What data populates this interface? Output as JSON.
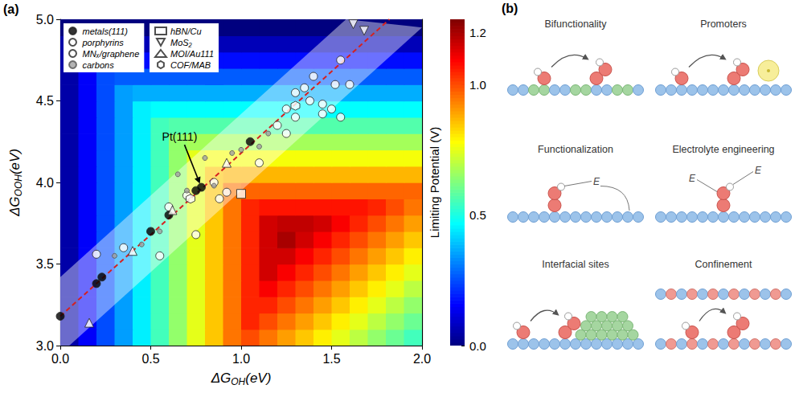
{
  "chart_data": {
    "type": "heatmap_scatter",
    "panel_label": "(a)",
    "xlabel": [
      "ΔG",
      "OH",
      "(eV)"
    ],
    "ylabel": [
      "ΔG",
      "OOH",
      "(eV)"
    ],
    "xlim": [
      0,
      2.0
    ],
    "ylim": [
      3.0,
      5.0
    ],
    "xticks": [
      {
        "value": 0,
        "label": "0.0"
      },
      0.5,
      {
        "value": 1,
        "label": "1.0"
      },
      1.5,
      {
        "value": 2,
        "label": "2.0"
      }
    ],
    "yticks": [
      {
        "value": 3,
        "label": "3.0"
      },
      3.5,
      {
        "value": 4,
        "label": "4.0"
      },
      4.5,
      {
        "value": 5,
        "label": "5.0"
      }
    ],
    "grid": false,
    "legend": "upper left",
    "heatmap": {
      "x": [
        0.05,
        0.15,
        0.25,
        0.35,
        0.45,
        0.55,
        0.65,
        0.75,
        0.85,
        0.95,
        1.05,
        1.15,
        1.25,
        1.35,
        1.45,
        1.55,
        1.65,
        1.75,
        1.85,
        1.95
      ],
      "y": [
        3.05,
        3.15,
        3.25,
        3.35,
        3.45,
        3.55,
        3.65,
        3.75,
        3.85,
        3.95,
        4.05,
        4.15,
        4.25,
        4.35,
        4.45,
        4.55,
        4.65,
        4.75,
        4.85,
        4.95
      ],
      "values": [
        [
          0.05,
          0.15,
          0.25,
          0.35,
          0.45,
          0.55,
          0.65,
          0.75,
          0.85,
          0.95,
          1.0,
          0.95,
          0.9,
          0.85,
          0.8,
          0.75,
          0.7,
          0.65,
          0.6,
          0.55
        ],
        [
          0.05,
          0.15,
          0.25,
          0.35,
          0.45,
          0.55,
          0.65,
          0.75,
          0.85,
          0.95,
          1.05,
          1.0,
          0.95,
          0.9,
          0.85,
          0.8,
          0.75,
          0.7,
          0.65,
          0.6
        ],
        [
          0.05,
          0.15,
          0.25,
          0.35,
          0.45,
          0.55,
          0.65,
          0.75,
          0.85,
          0.95,
          1.05,
          1.05,
          1.0,
          0.95,
          0.9,
          0.85,
          0.8,
          0.75,
          0.7,
          0.65
        ],
        [
          0.05,
          0.15,
          0.25,
          0.35,
          0.45,
          0.55,
          0.65,
          0.75,
          0.85,
          0.95,
          1.05,
          1.1,
          1.05,
          1.0,
          0.95,
          0.9,
          0.85,
          0.8,
          0.75,
          0.7
        ],
        [
          0.05,
          0.15,
          0.25,
          0.35,
          0.45,
          0.55,
          0.65,
          0.75,
          0.85,
          0.95,
          1.05,
          1.15,
          1.1,
          1.05,
          1.0,
          0.95,
          0.9,
          0.85,
          0.8,
          0.75
        ],
        [
          0.05,
          0.15,
          0.25,
          0.35,
          0.45,
          0.55,
          0.65,
          0.75,
          0.85,
          0.95,
          1.05,
          1.15,
          1.15,
          1.1,
          1.05,
          1.0,
          0.95,
          0.9,
          0.85,
          0.8
        ],
        [
          0.05,
          0.15,
          0.25,
          0.35,
          0.45,
          0.55,
          0.65,
          0.75,
          0.85,
          0.95,
          1.05,
          1.15,
          1.2,
          1.15,
          1.1,
          1.05,
          1.0,
          0.95,
          0.9,
          0.85
        ],
        [
          0.05,
          0.15,
          0.25,
          0.35,
          0.45,
          0.55,
          0.65,
          0.75,
          0.85,
          0.95,
          1.05,
          1.15,
          1.17,
          1.17,
          1.15,
          1.1,
          1.05,
          1.0,
          0.95,
          0.9
        ],
        [
          0.05,
          0.15,
          0.25,
          0.35,
          0.45,
          0.55,
          0.65,
          0.75,
          0.85,
          0.95,
          1.05,
          1.07,
          1.07,
          1.07,
          1.07,
          1.07,
          1.07,
          1.05,
          1.0,
          0.95
        ],
        [
          0.05,
          0.15,
          0.25,
          0.35,
          0.45,
          0.55,
          0.65,
          0.75,
          0.85,
          0.95,
          0.97,
          0.97,
          0.97,
          0.97,
          0.97,
          0.97,
          0.97,
          0.97,
          0.97,
          0.97
        ],
        [
          0.05,
          0.15,
          0.25,
          0.35,
          0.45,
          0.55,
          0.65,
          0.75,
          0.85,
          0.87,
          0.87,
          0.87,
          0.87,
          0.87,
          0.87,
          0.87,
          0.87,
          0.87,
          0.87,
          0.87
        ],
        [
          0.05,
          0.15,
          0.25,
          0.35,
          0.45,
          0.55,
          0.65,
          0.75,
          0.77,
          0.77,
          0.77,
          0.77,
          0.77,
          0.77,
          0.77,
          0.77,
          0.77,
          0.77,
          0.77,
          0.77
        ],
        [
          0.05,
          0.15,
          0.25,
          0.35,
          0.45,
          0.55,
          0.65,
          0.67,
          0.67,
          0.67,
          0.67,
          0.67,
          0.67,
          0.67,
          0.67,
          0.67,
          0.67,
          0.67,
          0.67,
          0.67
        ],
        [
          0.05,
          0.15,
          0.25,
          0.35,
          0.45,
          0.55,
          0.57,
          0.57,
          0.57,
          0.57,
          0.57,
          0.57,
          0.57,
          0.57,
          0.57,
          0.57,
          0.57,
          0.57,
          0.57,
          0.57
        ],
        [
          0.05,
          0.15,
          0.25,
          0.35,
          0.45,
          0.47,
          0.47,
          0.47,
          0.47,
          0.47,
          0.47,
          0.47,
          0.47,
          0.47,
          0.47,
          0.47,
          0.47,
          0.47,
          0.47,
          0.47
        ],
        [
          0.05,
          0.15,
          0.25,
          0.35,
          0.37,
          0.37,
          0.37,
          0.37,
          0.37,
          0.37,
          0.37,
          0.37,
          0.37,
          0.37,
          0.37,
          0.37,
          0.37,
          0.37,
          0.37,
          0.37
        ],
        [
          0.05,
          0.15,
          0.25,
          0.27,
          0.27,
          0.27,
          0.27,
          0.27,
          0.27,
          0.27,
          0.27,
          0.27,
          0.27,
          0.27,
          0.27,
          0.27,
          0.27,
          0.27,
          0.27,
          0.27
        ],
        [
          0.05,
          0.15,
          0.17,
          0.17,
          0.17,
          0.17,
          0.17,
          0.17,
          0.17,
          0.17,
          0.17,
          0.17,
          0.17,
          0.17,
          0.17,
          0.17,
          0.17,
          0.17,
          0.17,
          0.17
        ],
        [
          0.05,
          0.07,
          0.07,
          0.07,
          0.07,
          0.07,
          0.07,
          0.07,
          0.07,
          0.07,
          0.07,
          0.07,
          0.07,
          0.07,
          0.07,
          0.07,
          0.07,
          0.07,
          0.07,
          0.07
        ],
        [
          -0.03,
          -0.03,
          -0.03,
          -0.03,
          -0.03,
          -0.03,
          -0.03,
          -0.03,
          -0.03,
          -0.03,
          -0.03,
          -0.03,
          -0.03,
          -0.03,
          -0.03,
          -0.03,
          -0.03,
          -0.03,
          -0.03,
          -0.03
        ]
      ]
    },
    "colorbar": {
      "label": "Limiting Potential (V)",
      "range": [
        0,
        1.25
      ],
      "ticks": [
        {
          "value": 0,
          "label": "0.0"
        },
        0.5,
        {
          "value": 1,
          "label": "1.0"
        },
        1.2
      ]
    },
    "band": {
      "upper": {
        "x": [
          0,
          1.58
        ],
        "y": [
          3.42,
          5.0
        ]
      },
      "lower": {
        "x": [
          0,
          2.0
        ],
        "y": [
          2.95,
          4.95
        ]
      }
    },
    "scaling_line": {
      "x": [
        0,
        1.82
      ],
      "y": [
        3.18,
        5.0
      ],
      "color": "#d62020",
      "line_style": "dashed"
    },
    "series": [
      {
        "name": "metals(111)",
        "marker": "circle",
        "color": "#000000",
        "x": [
          0,
          0.2,
          0.23,
          0.5,
          0.6,
          0.75,
          0.78,
          1.05
        ],
        "y": [
          3.18,
          3.38,
          3.42,
          3.7,
          3.8,
          3.95,
          3.97,
          4.25
        ]
      },
      {
        "name": "porphyrins",
        "marker": "circle",
        "color": "#ffffff",
        "x": [
          0.2,
          0.35,
          0.55,
          0.75,
          0.92,
          0.85,
          1.1,
          1.3,
          1.38,
          1.45,
          1.52,
          1.55,
          1.3,
          1.5
        ],
        "y": [
          3.56,
          3.6,
          3.55,
          3.68,
          3.94,
          4.0,
          4.12,
          4.4,
          4.5,
          4.42,
          4.6,
          4.75,
          4.55,
          4.45
        ]
      },
      {
        "name": "MNₓ/graphene",
        "marker": "circle",
        "color": "#ffffff",
        "x": [
          0.6,
          0.7,
          0.88,
          1.2,
          1.25,
          1.35,
          1.4,
          1.45,
          1.55,
          1.6,
          1.25
        ],
        "y": [
          3.85,
          3.92,
          3.9,
          4.35,
          4.45,
          4.58,
          4.65,
          4.48,
          4.4,
          4.6,
          4.3
        ]
      },
      {
        "name": "carbons",
        "marker": "point",
        "color": "#a0a0a0",
        "x": [
          0.3,
          0.45,
          0.55,
          0.65,
          0.7,
          0.8,
          0.85,
          0.95,
          1.0,
          1.1,
          1.15
        ],
        "y": [
          3.55,
          3.62,
          3.7,
          4.05,
          3.95,
          4.15,
          3.98,
          4.18,
          4.2,
          4.22,
          4.3
        ]
      },
      {
        "name": "hBN/Cu",
        "marker": "square",
        "color": "#ffffff",
        "x": [
          1.0
        ],
        "y": [
          3.93
        ]
      },
      {
        "name": "MoS₂",
        "marker": "triangle_down",
        "color": "#ffffff",
        "x": [
          1.62,
          1.68
        ],
        "y": [
          4.97,
          4.93
        ]
      },
      {
        "name": "MOI/Au111",
        "marker": "triangle",
        "color": "#ffffff",
        "x": [
          0.16,
          0.4,
          0.62,
          0.92
        ],
        "y": [
          3.14,
          3.58,
          3.83,
          4.12
        ]
      },
      {
        "name": "COF/MAB",
        "marker": "hexagon",
        "color": "#ffffff",
        "x": [
          0.72,
          1.3
        ],
        "y": [
          3.9,
          4.47
        ]
      }
    ],
    "annotations": [
      {
        "text": "Pt(111)",
        "xy": [
          0.78,
          3.97
        ],
        "xytext": [
          0.66,
          4.28
        ]
      }
    ]
  },
  "panel_b": {
    "label": "(b)",
    "panels": [
      {
        "title": "Bifunctionality"
      },
      {
        "title": "Promoters"
      },
      {
        "title": "Functionalization",
        "marks": [
          "E"
        ]
      },
      {
        "title": "Electrolyte engineering",
        "marks": [
          "E",
          "E"
        ]
      },
      {
        "title": "Interfacial sites"
      },
      {
        "title": "Confinement"
      }
    ]
  }
}
